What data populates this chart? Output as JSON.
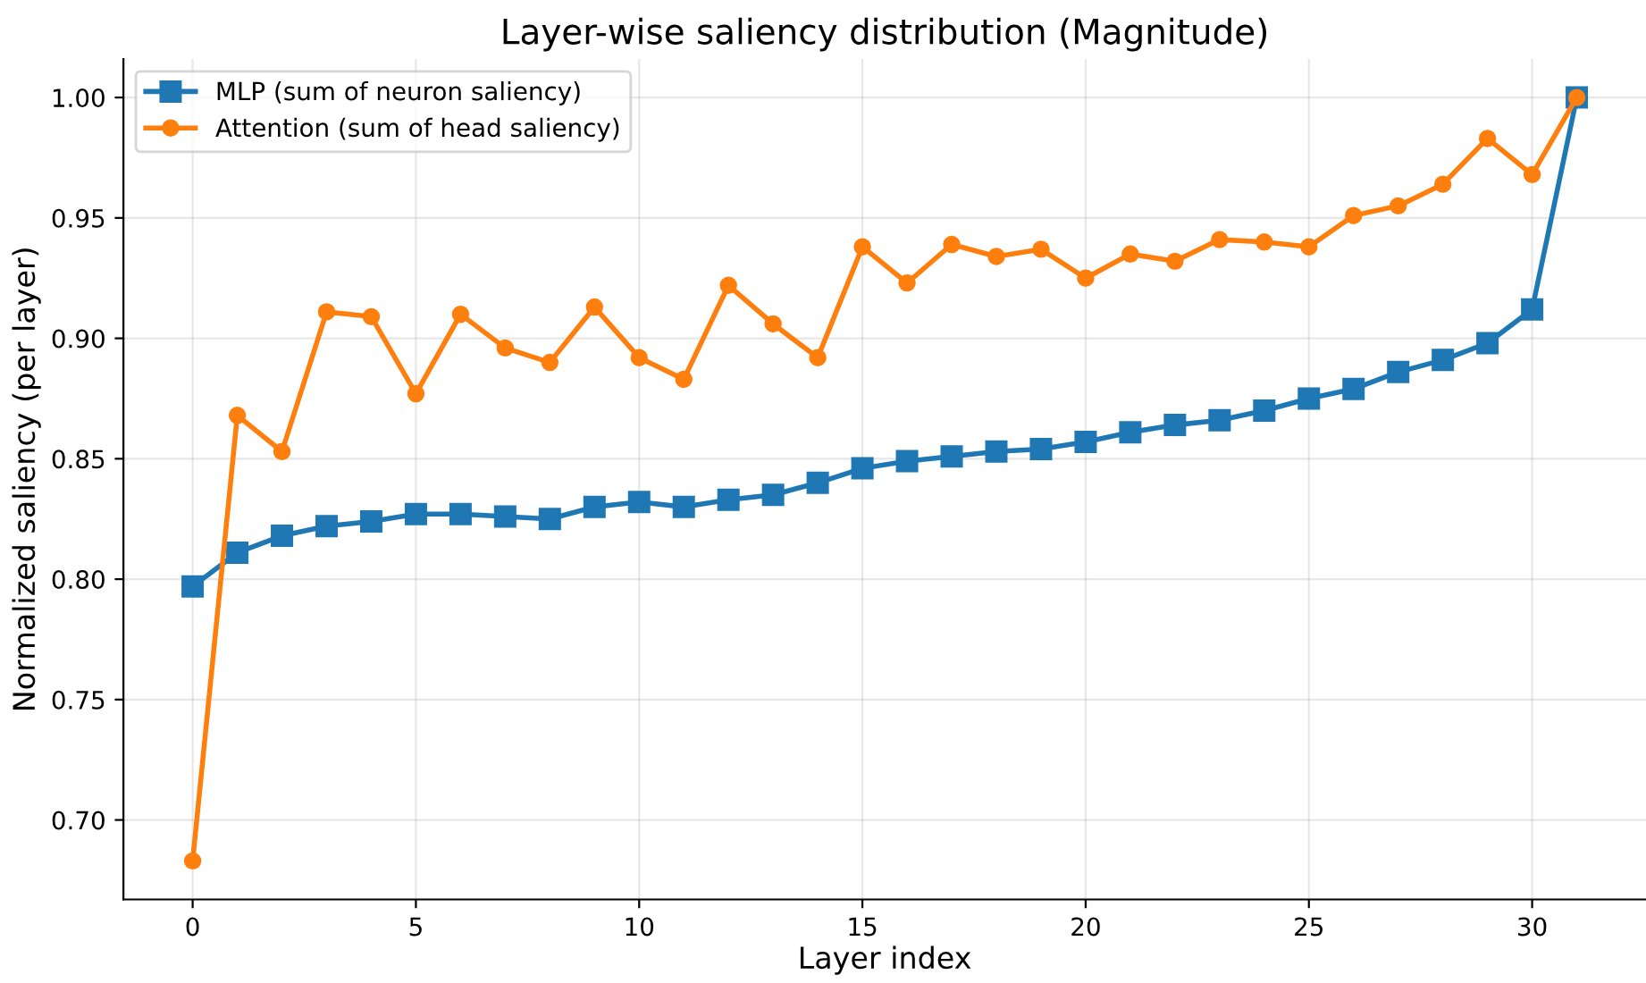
{
  "chart_data": {
    "type": "line",
    "title": "Layer-wise saliency distribution (Magnitude)",
    "xlabel": "Layer index",
    "ylabel": "Normalized saliency (per layer)",
    "x": [
      0,
      1,
      2,
      3,
      4,
      5,
      6,
      7,
      8,
      9,
      10,
      11,
      12,
      13,
      14,
      15,
      16,
      17,
      18,
      19,
      20,
      21,
      22,
      23,
      24,
      25,
      26,
      27,
      28,
      29,
      30,
      31
    ],
    "series": [
      {
        "name": "MLP (sum of neuron saliency)",
        "color": "#1f77b4",
        "marker": "square",
        "values": [
          0.797,
          0.811,
          0.818,
          0.822,
          0.824,
          0.827,
          0.827,
          0.826,
          0.825,
          0.83,
          0.832,
          0.83,
          0.833,
          0.835,
          0.84,
          0.846,
          0.849,
          0.851,
          0.853,
          0.854,
          0.857,
          0.861,
          0.864,
          0.866,
          0.87,
          0.875,
          0.879,
          0.886,
          0.891,
          0.898,
          0.912,
          1.0
        ]
      },
      {
        "name": "Attention (sum of head saliency)",
        "color": "#ff7f0e",
        "marker": "circle",
        "values": [
          0.683,
          0.868,
          0.853,
          0.911,
          0.909,
          0.877,
          0.91,
          0.896,
          0.89,
          0.913,
          0.892,
          0.883,
          0.922,
          0.906,
          0.892,
          0.938,
          0.923,
          0.939,
          0.934,
          0.937,
          0.925,
          0.935,
          0.932,
          0.941,
          0.94,
          0.938,
          0.951,
          0.955,
          0.964,
          0.983,
          0.968,
          1.0
        ]
      }
    ],
    "xlim": [
      -1.55,
      32.55
    ],
    "ylim": [
      0.667,
      1.016
    ],
    "xticks": [
      0,
      5,
      10,
      15,
      20,
      25,
      30
    ],
    "yticks": [
      {
        "value": 0.7,
        "label": "0.70"
      },
      {
        "value": 0.75,
        "label": "0.75"
      },
      {
        "value": 0.8,
        "label": "0.80"
      },
      {
        "value": 0.85,
        "label": "0.85"
      },
      {
        "value": 0.9,
        "label": "0.90"
      },
      {
        "value": 0.95,
        "label": "0.95"
      },
      {
        "value": 1.0,
        "label": "1.00"
      }
    ],
    "grid": true,
    "legend": "top left",
    "line_style": "solid"
  }
}
